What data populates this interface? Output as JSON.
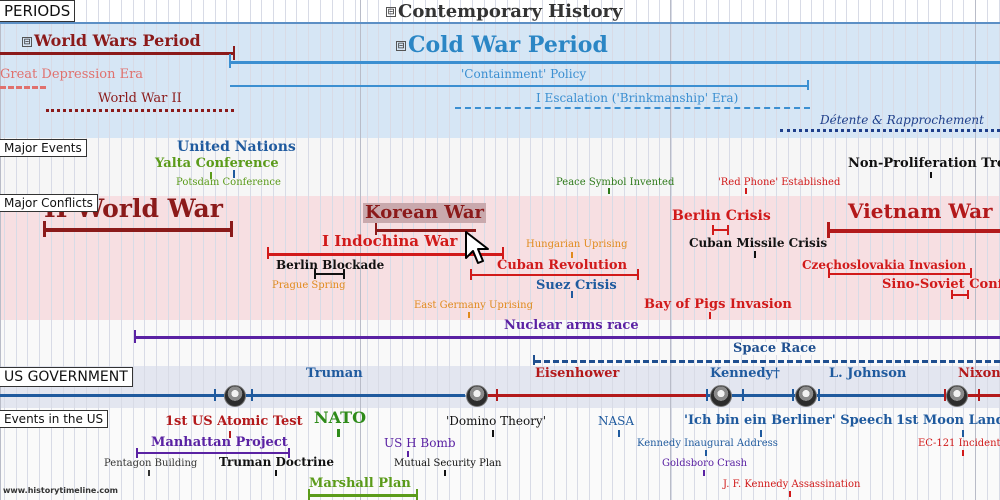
{
  "sections": {
    "periods": "PERIODS",
    "major_events": "Major Events",
    "major_conflicts": "Major Conflicts",
    "us_government": "US GOVERNMENT",
    "events_us": "Events in the US"
  },
  "periods": {
    "contemporary": "Contemporary History",
    "world_wars": "World Wars Period",
    "cold_war": "Cold War Period",
    "great_depression": "Great Depression Era",
    "world_war_ii": "World War II",
    "containment": "'Containment' Policy",
    "escalation": "I Escalation ('Brinkmanship' Era)",
    "detente": "Détente & Rapprochement",
    "expander_symbol": "⊟"
  },
  "major_events": {
    "united_nations": "United Nations",
    "yalta": "Yalta Conference",
    "potsdam": "Potsdam Conference",
    "peace_symbol": "Peace Symbol Invented",
    "red_phone": "'Red Phone' Established",
    "non_proliferation": "Non-Proliferation Trea"
  },
  "conflicts": {
    "ww2": "II World War",
    "korean_war": "Korean War",
    "indochina": "I Indochina War",
    "berlin_blockade": "Berlin Blockade",
    "prague_spring": "Prague Spring",
    "hungarian_uprising": "Hungarian Uprising",
    "cuban_revolution": "Cuban Revolution",
    "east_germany": "East Germany Uprising",
    "suez": "Suez Crisis",
    "berlin_crisis": "Berlin Crisis",
    "cuban_missile": "Cuban Missile Crisis",
    "bay_of_pigs": "Bay of Pigs Invasion",
    "vietnam": "Vietnam War",
    "czechoslovakia": "Czechoslovakia Invasion",
    "sino_soviet": "Sino-Soviet Confli",
    "nuclear_race": "Nuclear arms race",
    "space_race": "Space Race"
  },
  "presidents": {
    "truman": "Truman",
    "eisenhower": "Eisenhower",
    "kennedy": "Kennedy†",
    "johnson": "L. Johnson",
    "nixon": "Nixon"
  },
  "us_events": {
    "atomic_test": "1st US Atomic Test",
    "nato": "NATO",
    "domino": "'Domino Theory'",
    "nasa": "NASA",
    "berliner": "'Ich bin ein Berliner' Speech",
    "moon_landing": "1st Moon Landin",
    "manhattan": "Manhattan Project",
    "h_bomb": "US H Bomb",
    "kennedy_address": "Kennedy Inaugural Address",
    "ec121": "EC-121 Incident",
    "pentagon": "Pentagon Building",
    "truman_doctrine": "Truman Doctrine",
    "mutual_security": "Mutual Security Plan",
    "goldsboro": "Goldsboro Crash",
    "marshall": "Marshall Plan",
    "jfk_assassination": "J. F. Kennedy Assassination"
  },
  "watermark": "www.historytimeline.com",
  "colors": {
    "blue_band": "#d6e6f5",
    "pink_band": "#f7dfe2",
    "grey_band": "#e3e6f0",
    "dark_red": "#8b1a1a",
    "red": "#d11a1a",
    "blue": "#2b6fb3",
    "navy": "#1f3f8a",
    "purple": "#5a22a3",
    "green": "#5b9b1a",
    "orange": "#e08a1c",
    "grey_text": "#555555"
  }
}
